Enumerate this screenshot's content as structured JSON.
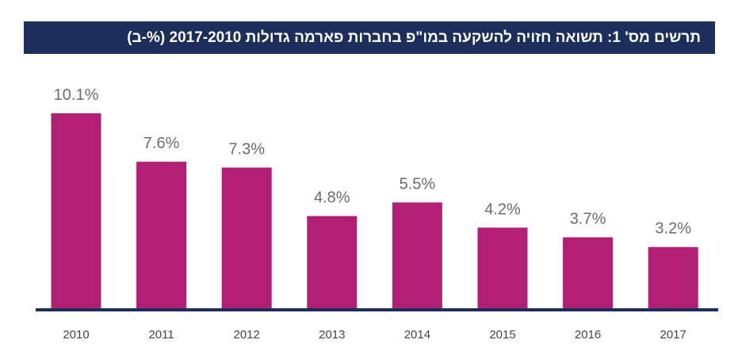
{
  "chart_data": {
    "type": "bar",
    "title": "תרשים מס' 1: תשואה חזויה להשקעה במו\"פ בחברות פארמה גדולות 2017-2010 (%-ב)",
    "categories": [
      "2010",
      "2011",
      "2012",
      "2013",
      "2014",
      "2015",
      "2016",
      "2017"
    ],
    "values": [
      10.1,
      7.6,
      7.3,
      4.8,
      5.5,
      4.2,
      3.7,
      3.2
    ],
    "data_labels": [
      "10.1%",
      "7.6%",
      "7.3%",
      "4.8%",
      "5.5%",
      "4.2%",
      "3.7%",
      "3.2%"
    ],
    "xlabel": "",
    "ylabel": "",
    "ylim": [
      0,
      11
    ],
    "grid": false,
    "colors": {
      "bar": "#b01f74",
      "title_bg": "#1c2f5c",
      "axis": "#1c2f5c",
      "label": "#6b6b6b"
    }
  }
}
